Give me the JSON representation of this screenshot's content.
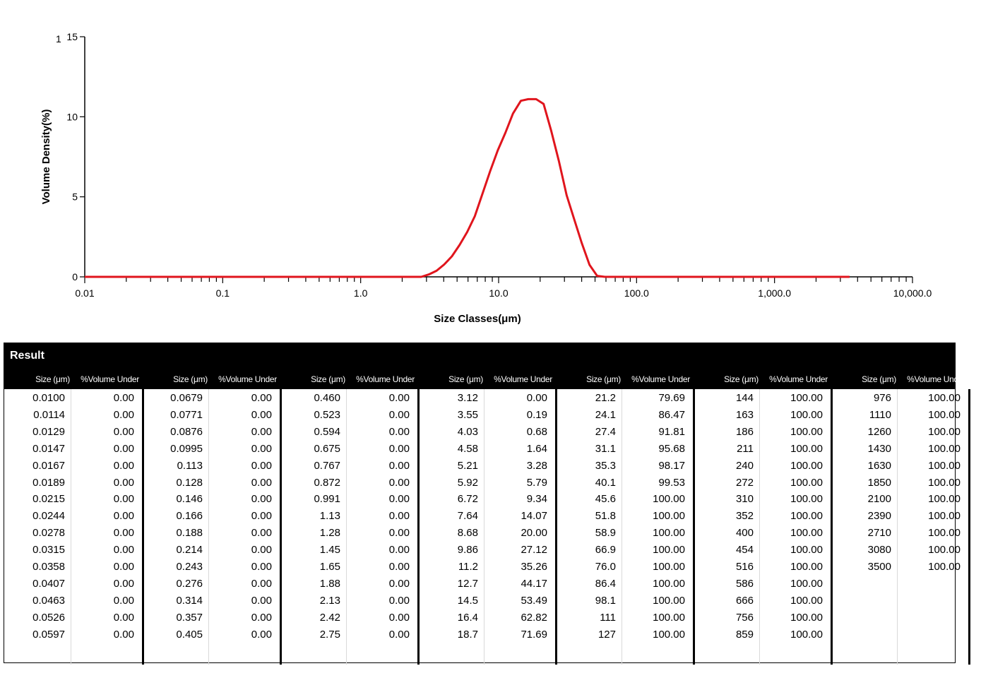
{
  "chart_data": {
    "type": "line",
    "x_scale": "log",
    "xlabel": "Size Classes(μm)",
    "ylabel": "Volume Density(%)",
    "xlim": [
      0.01,
      10000
    ],
    "ylim": [
      0,
      15
    ],
    "x_tick_labels": [
      "0.01",
      "0.1",
      "1.0",
      "10.0",
      "100.0",
      "1,000.0",
      "10,000.0"
    ],
    "y_tick_labels": [
      "0",
      "5",
      "10",
      "15"
    ],
    "y_corner_mark": "1",
    "grid": false,
    "line_color": "#e0151d",
    "series": [
      {
        "x": [
          0.01,
          0.0114,
          0.0129,
          0.0147,
          0.0167,
          0.0189,
          0.0215,
          0.0244,
          0.0278,
          0.0315,
          0.0358,
          0.0407,
          0.0463,
          0.0526,
          0.0597,
          0.0679,
          0.0771,
          0.0876,
          0.0995,
          0.113,
          0.128,
          0.146,
          0.166,
          0.188,
          0.214,
          0.243,
          0.276,
          0.314,
          0.357,
          0.405,
          0.46,
          0.523,
          0.594,
          0.675,
          0.767,
          0.872,
          0.991,
          1.13,
          1.28,
          1.45,
          1.65,
          1.88,
          2.13,
          2.42,
          2.75,
          3.12,
          3.55,
          4.03,
          4.58,
          5.21,
          5.92,
          6.72,
          7.64,
          8.68,
          9.86,
          11.2,
          12.7,
          14.5,
          16.4,
          18.7,
          21.2,
          24.1,
          27.4,
          31.1,
          35.3,
          40.1,
          45.6,
          51.8,
          58.9,
          66.9,
          76.0,
          86.4,
          98.1,
          111,
          127,
          144,
          163,
          186,
          211,
          240,
          272,
          310,
          352,
          400,
          454,
          516,
          586,
          666,
          756,
          859,
          976,
          1110,
          1260,
          1430,
          1630,
          1850,
          2100,
          2390,
          2710,
          3080,
          3500
        ],
        "y": [
          0,
          0,
          0,
          0,
          0,
          0,
          0,
          0,
          0,
          0,
          0,
          0,
          0,
          0,
          0,
          0,
          0,
          0,
          0,
          0,
          0,
          0,
          0,
          0,
          0,
          0,
          0,
          0,
          0,
          0,
          0,
          0,
          0,
          0,
          0,
          0,
          0,
          0,
          0,
          0,
          0,
          0,
          0,
          0,
          0,
          0.15,
          0.38,
          0.77,
          1.28,
          1.99,
          2.8,
          3.79,
          5.2,
          6.6,
          7.9,
          9.0,
          10.2,
          11.0,
          11.1,
          11.1,
          10.8,
          9.1,
          7.2,
          5.1,
          3.6,
          2.1,
          0.75,
          0.06,
          0,
          0,
          0,
          0,
          0,
          0,
          0,
          0,
          0,
          0,
          0,
          0,
          0,
          0,
          0,
          0,
          0,
          0,
          0,
          0,
          0,
          0,
          0,
          0,
          0,
          0,
          0,
          0,
          0,
          0,
          0,
          0,
          0
        ]
      }
    ]
  },
  "result": {
    "title": "Result",
    "size_header": "Size (μm)",
    "volume_header": "%Volume Under",
    "groups": [
      {
        "rows": [
          [
            "0.0100",
            "0.00"
          ],
          [
            "0.0114",
            "0.00"
          ],
          [
            "0.0129",
            "0.00"
          ],
          [
            "0.0147",
            "0.00"
          ],
          [
            "0.0167",
            "0.00"
          ],
          [
            "0.0189",
            "0.00"
          ],
          [
            "0.0215",
            "0.00"
          ],
          [
            "0.0244",
            "0.00"
          ],
          [
            "0.0278",
            "0.00"
          ],
          [
            "0.0315",
            "0.00"
          ],
          [
            "0.0358",
            "0.00"
          ],
          [
            "0.0407",
            "0.00"
          ],
          [
            "0.0463",
            "0.00"
          ],
          [
            "0.0526",
            "0.00"
          ],
          [
            "0.0597",
            "0.00"
          ]
        ]
      },
      {
        "rows": [
          [
            "0.0679",
            "0.00"
          ],
          [
            "0.0771",
            "0.00"
          ],
          [
            "0.0876",
            "0.00"
          ],
          [
            "0.0995",
            "0.00"
          ],
          [
            "0.113",
            "0.00"
          ],
          [
            "0.128",
            "0.00"
          ],
          [
            "0.146",
            "0.00"
          ],
          [
            "0.166",
            "0.00"
          ],
          [
            "0.188",
            "0.00"
          ],
          [
            "0.214",
            "0.00"
          ],
          [
            "0.243",
            "0.00"
          ],
          [
            "0.276",
            "0.00"
          ],
          [
            "0.314",
            "0.00"
          ],
          [
            "0.357",
            "0.00"
          ],
          [
            "0.405",
            "0.00"
          ]
        ]
      },
      {
        "rows": [
          [
            "0.460",
            "0.00"
          ],
          [
            "0.523",
            "0.00"
          ],
          [
            "0.594",
            "0.00"
          ],
          [
            "0.675",
            "0.00"
          ],
          [
            "0.767",
            "0.00"
          ],
          [
            "0.872",
            "0.00"
          ],
          [
            "0.991",
            "0.00"
          ],
          [
            "1.13",
            "0.00"
          ],
          [
            "1.28",
            "0.00"
          ],
          [
            "1.45",
            "0.00"
          ],
          [
            "1.65",
            "0.00"
          ],
          [
            "1.88",
            "0.00"
          ],
          [
            "2.13",
            "0.00"
          ],
          [
            "2.42",
            "0.00"
          ],
          [
            "2.75",
            "0.00"
          ]
        ]
      },
      {
        "rows": [
          [
            "3.12",
            "0.00"
          ],
          [
            "3.55",
            "0.19"
          ],
          [
            "4.03",
            "0.68"
          ],
          [
            "4.58",
            "1.64"
          ],
          [
            "5.21",
            "3.28"
          ],
          [
            "5.92",
            "5.79"
          ],
          [
            "6.72",
            "9.34"
          ],
          [
            "7.64",
            "14.07"
          ],
          [
            "8.68",
            "20.00"
          ],
          [
            "9.86",
            "27.12"
          ],
          [
            "11.2",
            "35.26"
          ],
          [
            "12.7",
            "44.17"
          ],
          [
            "14.5",
            "53.49"
          ],
          [
            "16.4",
            "62.82"
          ],
          [
            "18.7",
            "71.69"
          ]
        ]
      },
      {
        "rows": [
          [
            "21.2",
            "79.69"
          ],
          [
            "24.1",
            "86.47"
          ],
          [
            "27.4",
            "91.81"
          ],
          [
            "31.1",
            "95.68"
          ],
          [
            "35.3",
            "98.17"
          ],
          [
            "40.1",
            "99.53"
          ],
          [
            "45.6",
            "100.00"
          ],
          [
            "51.8",
            "100.00"
          ],
          [
            "58.9",
            "100.00"
          ],
          [
            "66.9",
            "100.00"
          ],
          [
            "76.0",
            "100.00"
          ],
          [
            "86.4",
            "100.00"
          ],
          [
            "98.1",
            "100.00"
          ],
          [
            "111",
            "100.00"
          ],
          [
            "127",
            "100.00"
          ]
        ]
      },
      {
        "rows": [
          [
            "144",
            "100.00"
          ],
          [
            "163",
            "100.00"
          ],
          [
            "186",
            "100.00"
          ],
          [
            "211",
            "100.00"
          ],
          [
            "240",
            "100.00"
          ],
          [
            "272",
            "100.00"
          ],
          [
            "310",
            "100.00"
          ],
          [
            "352",
            "100.00"
          ],
          [
            "400",
            "100.00"
          ],
          [
            "454",
            "100.00"
          ],
          [
            "516",
            "100.00"
          ],
          [
            "586",
            "100.00"
          ],
          [
            "666",
            "100.00"
          ],
          [
            "756",
            "100.00"
          ],
          [
            "859",
            "100.00"
          ]
        ]
      },
      {
        "rows": [
          [
            "976",
            "100.00"
          ],
          [
            "1110",
            "100.00"
          ],
          [
            "1260",
            "100.00"
          ],
          [
            "1430",
            "100.00"
          ],
          [
            "1630",
            "100.00"
          ],
          [
            "1850",
            "100.00"
          ],
          [
            "2100",
            "100.00"
          ],
          [
            "2390",
            "100.00"
          ],
          [
            "2710",
            "100.00"
          ],
          [
            "3080",
            "100.00"
          ],
          [
            "3500",
            "100.00"
          ]
        ]
      }
    ]
  }
}
